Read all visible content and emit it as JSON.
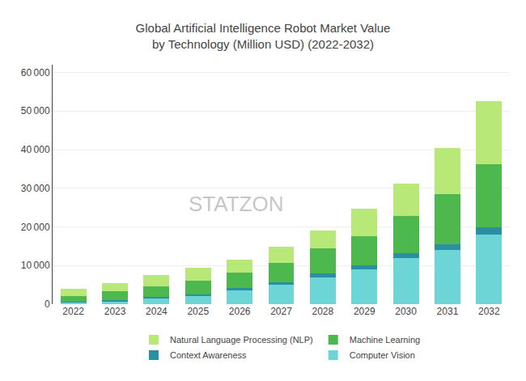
{
  "chart_data": {
    "type": "bar",
    "title": "Global Artificial Intelligence Robot Market Value\nby Technology (Million USD) (2022-2032)",
    "categories": [
      "2022",
      "2023",
      "2024",
      "2025",
      "2026",
      "2027",
      "2028",
      "2029",
      "2030",
      "2031",
      "2032"
    ],
    "series": [
      {
        "name": "Computer Vision",
        "color": "#6dd5d5",
        "values": [
          500,
          800,
          1500,
          2000,
          3500,
          5000,
          7000,
          9000,
          12000,
          14000,
          18000
        ]
      },
      {
        "name": "Context Awareness",
        "color": "#2a8fa0",
        "values": [
          200,
          300,
          400,
          500,
          600,
          700,
          900,
          1100,
          1300,
          1500,
          1800
        ]
      },
      {
        "name": "Machine Learning",
        "color": "#4db84d",
        "values": [
          1500,
          2200,
          2800,
          3500,
          4000,
          5000,
          6500,
          7500,
          9500,
          13000,
          16500
        ]
      },
      {
        "name": "Natural Language Processing (NLP)",
        "color": "#b8e878",
        "values": [
          1800,
          2200,
          2800,
          3400,
          3500,
          4200,
          4600,
          7200,
          8500,
          12000,
          16200
        ]
      }
    ],
    "stacked": true,
    "ylim": [
      0,
      62000
    ],
    "yticks": [
      0,
      {
        "value": 10000,
        "label": "10 000"
      },
      {
        "value": 20000,
        "label": "20 000"
      },
      {
        "value": 30000,
        "label": "30 000"
      },
      {
        "value": 40000,
        "label": "40 000"
      },
      {
        "value": 50000,
        "label": "50 000"
      },
      {
        "value": 60000,
        "label": "60 000"
      }
    ],
    "grid": true,
    "legend": "bottom",
    "annotations": [
      "STATZON"
    ]
  }
}
